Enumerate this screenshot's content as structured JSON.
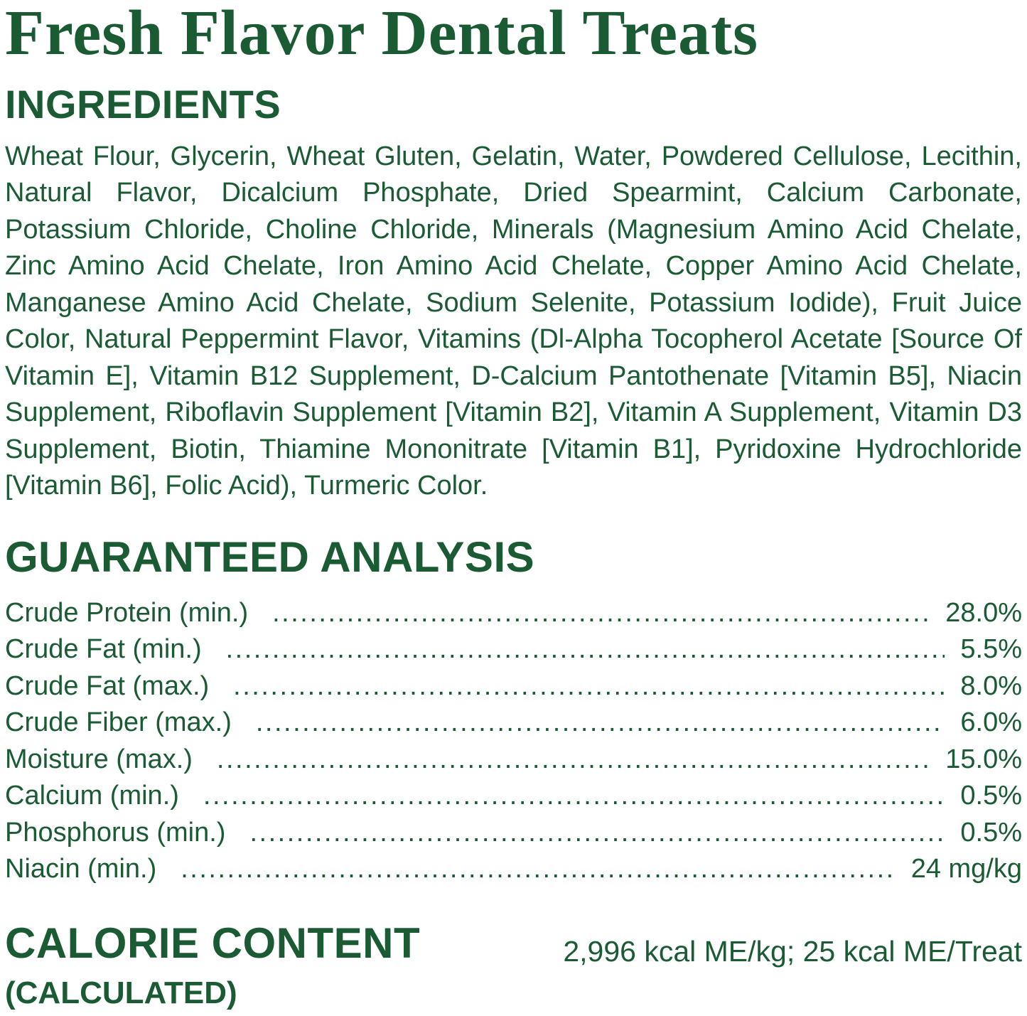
{
  "theme": {
    "accent_green": "#1b5b34",
    "background": "#ffffff"
  },
  "title": "Fresh Flavor Dental Treats",
  "ingredients": {
    "heading": "INGREDIENTS",
    "text": "Wheat Flour, Glycerin, Wheat Gluten, Gelatin, Water, Powdered Cellulose, Lecithin, Natural Flavor, Dicalcium Phosphate, Dried Spearmint, Calcium Carbonate, Potassium Chloride, Choline Chloride, Minerals (Magnesium Amino Acid Chelate, Zinc Amino Acid Chelate, Iron Amino Acid Chelate, Copper Amino Acid Chelate, Manganese Amino Acid Chelate, Sodium Selenite, Potassium Iodide), Fruit Juice Color, Natural Peppermint Flavor, Vitamins (Dl-Alpha Tocopherol Acetate [Source Of Vitamin E], Vitamin B12 Supplement, D-Calcium Pantothenate [Vitamin B5], Niacin Supplement, Riboflavin Supplement [Vitamin B2], Vitamin A Supplement, Vitamin D3 Supplement, Biotin, Thiamine Mononitrate [Vitamin B1], Pyridoxine Hydrochloride [Vitamin B6], Folic Acid), Turmeric Color."
  },
  "guaranteed_analysis": {
    "heading": "GUARANTEED ANALYSIS",
    "rows": [
      {
        "label": "Crude Protein (min.)",
        "value": "28.0%"
      },
      {
        "label": "Crude Fat (min.)",
        "value": "5.5%"
      },
      {
        "label": "Crude Fat (max.)",
        "value": "8.0%"
      },
      {
        "label": "Crude Fiber (max.)",
        "value": "6.0%"
      },
      {
        "label": "Moisture (max.)",
        "value": "15.0%"
      },
      {
        "label": "Calcium (min.)",
        "value": "0.5%"
      },
      {
        "label": "Phosphorus (min.)",
        "value": "0.5%"
      },
      {
        "label": "Niacin (min.)",
        "value": "24 mg/kg"
      }
    ]
  },
  "calorie_content": {
    "heading": "CALORIE CONTENT",
    "subheading": "(CALCULATED)",
    "value": "2,996 kcal ME/kg; 25 kcal ME/Treat"
  }
}
